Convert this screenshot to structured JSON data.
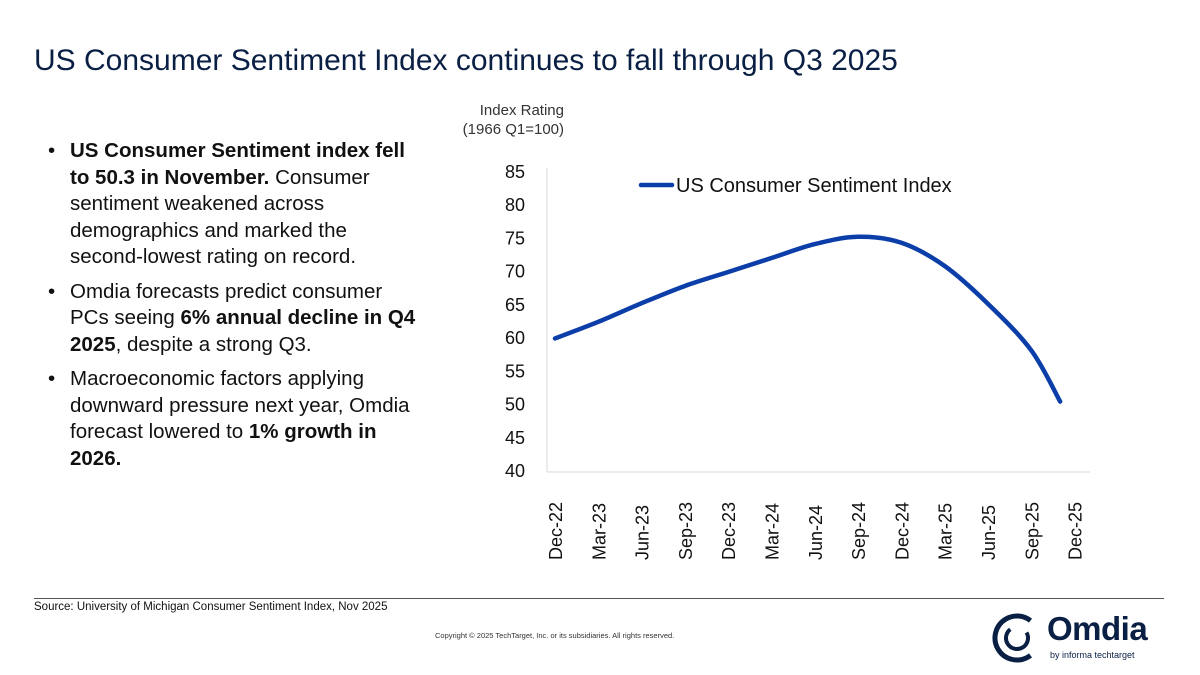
{
  "title": "US Consumer Sentiment Index continues to fall through Q3 2025",
  "bullets": [
    {
      "parts": [
        {
          "text": "US Consumer Sentiment index fell to 50.3 in November.",
          "bold": true
        },
        {
          "text": " Consumer sentiment weakened across demographics and marked the second-lowest rating on record.",
          "bold": false
        }
      ]
    },
    {
      "parts": [
        {
          "text": "Omdia forecasts predict consumer PCs seeing ",
          "bold": false
        },
        {
          "text": "6% annual decline in Q4 2025",
          "bold": true
        },
        {
          "text": ", despite a strong Q3.",
          "bold": false
        }
      ]
    },
    {
      "parts": [
        {
          "text": "Macroeconomic factors applying downward pressure next year, Omdia forecast lowered to ",
          "bold": false
        },
        {
          "text": "1% growth in 2026.",
          "bold": true
        }
      ]
    }
  ],
  "footer": {
    "source": "Source: University of Michigan Consumer Sentiment Index, Nov 2025",
    "copyright": "Copyright © 2025 TechTarget, Inc. or its subsidiaries. All rights reserved.",
    "logo_word": "Omdia",
    "logo_sub": "by informa techtarget"
  },
  "chart_data": {
    "type": "line",
    "title": "",
    "ylabel_line1": "Index Rating",
    "ylabel_line2": "(1966 Q1=100)",
    "ylim": [
      40,
      85
    ],
    "yticks": [
      40,
      45,
      50,
      55,
      60,
      65,
      70,
      75,
      80,
      85
    ],
    "categories": [
      "Dec-22",
      "Mar-23",
      "Jun-23",
      "Sep-23",
      "Dec-23",
      "Mar-24",
      "Jun-24",
      "Sep-24",
      "Dec-24",
      "Mar-25",
      "Jun-25",
      "Sep-25",
      "Dec-25"
    ],
    "legend_position": "top",
    "grid": false,
    "series": [
      {
        "name": "US Consumer Sentiment Index",
        "color": "#0b3ea8",
        "x": [
          "Dec-22",
          "Mar-23",
          "Jun-23",
          "Sep-23",
          "Dec-23",
          "Mar-24",
          "Jun-24",
          "Sep-24",
          "Dec-24",
          "Mar-25",
          "Jun-25",
          "Sep-25",
          "Nov-25"
        ],
        "values": [
          59.8,
          62.3,
          65.1,
          67.7,
          69.8,
          71.9,
          74.0,
          75.1,
          74.2,
          70.7,
          65.0,
          58.0,
          50.3
        ]
      }
    ]
  }
}
